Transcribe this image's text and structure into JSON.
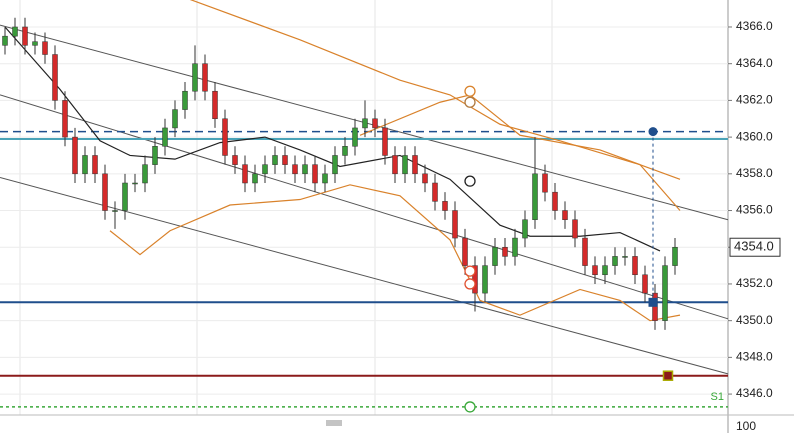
{
  "chart_data": {
    "type": "candlestick",
    "up_color": "#3a9a3a",
    "down_color": "#d42a2a",
    "wick_color": "#333333",
    "grid": true,
    "xlim": [
      -0.5,
      72.3
    ],
    "ylim": [
      4344.86,
      4367.47
    ],
    "yticks": [
      {
        "value": 4346,
        "label": "4346.0"
      },
      {
        "value": 4348,
        "label": "4348.0"
      },
      {
        "value": 4350,
        "label": "4350.0"
      },
      {
        "value": 4352,
        "label": "4352.0"
      },
      {
        "value": 4354,
        "label": "4354.0"
      },
      {
        "value": 4356,
        "label": "4356.0"
      },
      {
        "value": 4358,
        "label": "4358.0"
      },
      {
        "value": 4360,
        "label": "4360.0"
      },
      {
        "value": 4362,
        "label": "4362.0"
      },
      {
        "value": 4364,
        "label": "4364.0"
      },
      {
        "value": 4366,
        "label": "4366.0"
      }
    ],
    "open": [
      4365,
      4365.5,
      4366,
      4365,
      4365.2,
      4364.5,
      4362,
      4360,
      4358,
      4359,
      4358,
      4356,
      4356,
      4357.5,
      4357.5,
      4358.5,
      4359.5,
      4360.5,
      4361.5,
      4362.5,
      4364,
      4362.5,
      4361,
      4359,
      4358.5,
      4357.5,
      4358,
      4358.5,
      4359,
      4358.5,
      4358,
      4358.5,
      4357.5,
      4358,
      4359,
      4359.5,
      4360.5,
      4361,
      4360.5,
      4359,
      4358,
      4359,
      4358,
      4357.5,
      4356.5,
      4356,
      4354.5,
      4353,
      4351.5,
      4353,
      4354,
      4353.5,
      4354.5,
      4355.5,
      4358,
      4357,
      4356,
      4355.5,
      4354.5,
      4353,
      4352.5,
      4353,
      4353.5,
      4353.5,
      4352.5,
      4351.5,
      4350,
      4353
    ],
    "high": [
      4366,
      4366.5,
      4366.5,
      4365.7,
      4365.7,
      4365,
      4362.5,
      4360.5,
      4359.5,
      4359.5,
      4358.5,
      4356.5,
      4358,
      4358,
      4359,
      4360,
      4361,
      4362,
      4363,
      4365,
      4364.5,
      4363,
      4361.5,
      4359.5,
      4359,
      4358.5,
      4359,
      4359.5,
      4359.5,
      4359,
      4359,
      4359,
      4358.5,
      4359.5,
      4360,
      4361,
      4362,
      4361.5,
      4361,
      4359.5,
      4359.5,
      4359.5,
      4358.5,
      4358,
      4357,
      4356.5,
      4355,
      4353.5,
      4353.5,
      4354.5,
      4354.5,
      4355,
      4356,
      4360,
      4358.5,
      4357.5,
      4356.5,
      4356,
      4355,
      4353.5,
      4353.5,
      4354,
      4354,
      4354,
      4353,
      4352,
      4353.5,
      4354.5
    ],
    "low": [
      4364.5,
      4365,
      4364.5,
      4364.5,
      4364,
      4361.5,
      4359.5,
      4357.5,
      4357.5,
      4357.5,
      4355.5,
      4355,
      4355.5,
      4357,
      4357,
      4358,
      4359,
      4360,
      4361,
      4362,
      4362,
      4360.5,
      4358.5,
      4358,
      4357,
      4357,
      4357.5,
      4358,
      4358,
      4357.5,
      4357.5,
      4357,
      4357,
      4357.5,
      4358.5,
      4359,
      4360,
      4360,
      4358.5,
      4357.5,
      4357.5,
      4357.5,
      4357,
      4356,
      4355.5,
      4354,
      4352.5,
      4350.5,
      4351,
      4352.5,
      4353,
      4353,
      4354,
      4355,
      4356.5,
      4355.5,
      4355,
      4354,
      4352.5,
      4352,
      4352,
      4352.5,
      4353,
      4352,
      4351,
      4349.5,
      4349.5,
      4352.5
    ],
    "close": [
      4365.5,
      4366,
      4365,
      4365.2,
      4364.5,
      4362,
      4360,
      4358,
      4359,
      4358,
      4356,
      4356,
      4357.5,
      4357.5,
      4358.5,
      4359.5,
      4360.5,
      4361.5,
      4362.5,
      4364,
      4362.5,
      4361,
      4359,
      4358.5,
      4357.5,
      4358,
      4358.5,
      4359,
      4358.5,
      4358,
      4358.5,
      4357.5,
      4358,
      4359,
      4359.5,
      4360.5,
      4361,
      4360.5,
      4359,
      4358,
      4359,
      4358,
      4357.5,
      4356.5,
      4356,
      4354.5,
      4353,
      4351.5,
      4353,
      4354,
      4353.5,
      4354.5,
      4355.5,
      4358,
      4357,
      4356,
      4355.5,
      4354.5,
      4353,
      4352.5,
      4353,
      4353.5,
      4353.5,
      4352.5,
      4351.5,
      4350,
      4353,
      4354
    ],
    "overlays": [
      {
        "color": "#222222",
        "x": [
          0,
          5.5,
          9.5,
          12.5,
          17,
          21.5,
          26,
          29.5,
          33.5,
          39.5,
          44.5,
          49.5,
          52.5,
          57.5,
          61.5,
          65.5
        ],
        "values": [
          4366,
          4362.6,
          4359.8,
          4359,
          4358.8,
          4359.7,
          4360,
          4359.3,
          4358.4,
          4359,
          4357.7,
          4355.2,
          4354.6,
          4354.6,
          4354.8,
          4353.8
        ]
      },
      {
        "color": "#d9822b",
        "x": [
          18.5,
          29.5,
          39.5,
          44.5,
          49.5,
          55.5,
          63.5,
          67.5
        ],
        "values": [
          4367.5,
          4365.3,
          4363.1,
          4362.3,
          4360.7,
          4359.8,
          4358.5,
          4357.7
        ]
      },
      {
        "color": "#d9822b",
        "x": [
          35.5,
          43.5,
          46.5,
          51.5,
          59.5,
          63.5,
          67.5
        ],
        "values": [
          4360.1,
          4361.9,
          4362.3,
          4360.1,
          4359.3,
          4358.5,
          4356
        ]
      },
      {
        "color": "#d9822b",
        "x": [
          10.5,
          13.5,
          16.5,
          22.5,
          29.5,
          34.5,
          39.5,
          44.5,
          47.5,
          51.5,
          57.5,
          61.5,
          64.5,
          67.5
        ],
        "values": [
          4354.9,
          4353.6,
          4354.9,
          4356.3,
          4356.6,
          4357.4,
          4356.8,
          4354.4,
          4351.1,
          4350.3,
          4351.7,
          4351.1,
          4350,
          4350.3
        ]
      }
    ],
    "channels": [
      {
        "color": "#555555",
        "x": [
          -0.5,
          72.3
        ],
        "values": [
          4366.1,
          4355.5
        ]
      },
      {
        "color": "#555555",
        "x": [
          -0.5,
          72.3
        ],
        "values": [
          4362.3,
          4350.1
        ]
      },
      {
        "color": "#555555",
        "x": [
          -0.5,
          72.3
        ],
        "values": [
          4357.8,
          4347.1
        ]
      }
    ],
    "levels": [
      {
        "value": 4360.3,
        "color": "#1f4e8c",
        "dashed": true
      },
      {
        "value": 4359.9,
        "color": "#4aa3b8",
        "dashed": false
      },
      {
        "value": 4351.0,
        "color": "#1f4e8c",
        "dashed": false
      },
      {
        "value": 4347.0,
        "color": "#8b1a1a",
        "dashed": false
      },
      {
        "value": 4345.3,
        "color": "#3aa83a",
        "dashed": true,
        "label": "S1"
      }
    ],
    "markers": [
      {
        "x": 46.5,
        "value": 4362.5,
        "color": "#d9822b",
        "shape": "circle"
      },
      {
        "x": 46.5,
        "value": 4361.9,
        "color": "#b07a40",
        "shape": "circle"
      },
      {
        "x": 46.5,
        "value": 4357.6,
        "color": "#222222",
        "shape": "circle"
      },
      {
        "x": 46.5,
        "value": 4352.7,
        "color": "#e05030",
        "shape": "circle"
      },
      {
        "x": 46.5,
        "value": 4352.0,
        "color": "#e05030",
        "shape": "circle"
      },
      {
        "x": 46.5,
        "value": 4345.3,
        "color": "#3aa83a",
        "shape": "circle"
      },
      {
        "x": 64.8,
        "value": 4360.3,
        "color": "#1f4e8c",
        "shape": "dot"
      },
      {
        "x": 64.8,
        "value": 4351.0,
        "color": "#1f4e8c",
        "shape": "square"
      },
      {
        "x": 66.3,
        "value": 4347.0,
        "color": "#8b1a1a",
        "shape": "square"
      }
    ],
    "last_price": {
      "value": 4354,
      "label": "4354.0"
    },
    "lower_panel": {
      "yticks": [
        100
      ]
    }
  }
}
